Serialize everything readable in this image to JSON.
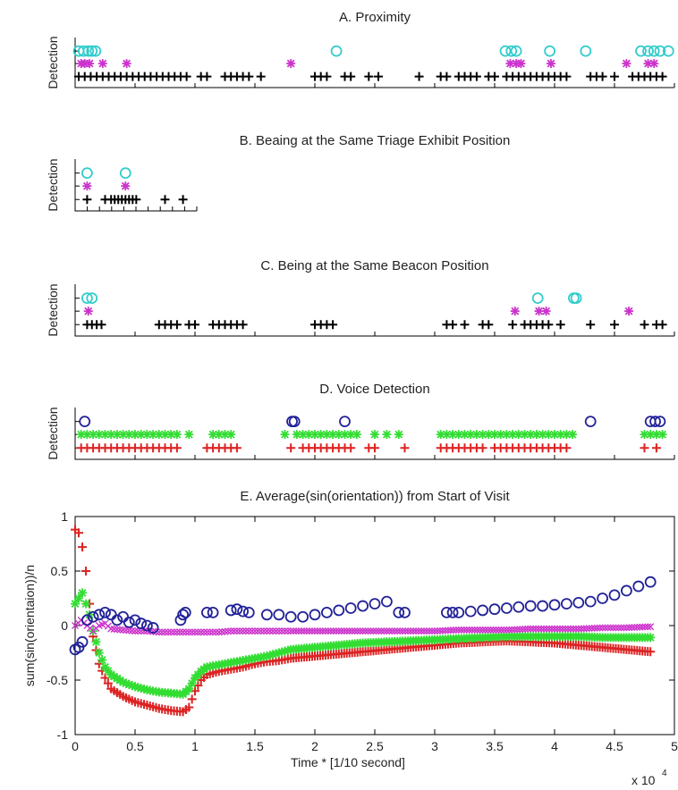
{
  "figure": {
    "x_exponent_base": "x 10",
    "x_exponent_power": "4"
  },
  "chart_data": [
    {
      "id": "A",
      "type": "scatter",
      "title": "A. Proximity",
      "ylabel": "Detection",
      "xlim": [
        0,
        50000
      ],
      "series": [
        {
          "marker": "plus",
          "color": "#000000",
          "level": 1,
          "x": [
            300,
            800,
            1300,
            1800,
            2300,
            2800,
            3300,
            3800,
            4300,
            4800,
            5300,
            5800,
            6300,
            6800,
            7300,
            7800,
            8300,
            8800,
            9300,
            10500,
            11000,
            12500,
            13000,
            13500,
            14000,
            14500,
            15500,
            20000,
            20500,
            21000,
            22500,
            23000,
            24500,
            25300,
            28700,
            30500,
            31000,
            32000,
            32500,
            33000,
            33500,
            34500,
            35000,
            36000,
            36500,
            37000,
            37500,
            38000,
            38500,
            39000,
            39500,
            40000,
            40500,
            41000,
            43000,
            43500,
            44000,
            45000,
            46500,
            47000,
            47500,
            48000,
            48500,
            49000
          ]
        },
        {
          "marker": "star",
          "color": "#cc33cc",
          "level": 2,
          "x": [
            500,
            800,
            1200,
            2300,
            4300,
            18000,
            36300,
            36800,
            37200,
            39700,
            46000,
            47800,
            48300
          ]
        },
        {
          "marker": "circle",
          "color": "#33cccc",
          "level": 3,
          "x": [
            300,
            700,
            1100,
            1400,
            1700,
            21800,
            35900,
            36400,
            36800,
            39600,
            42600,
            47200,
            47800,
            48300,
            48800,
            49500
          ]
        }
      ]
    },
    {
      "id": "B",
      "type": "scatter",
      "title": "B. Beaing at the Same Triage Exhibit Position",
      "ylabel": "Detection",
      "xlim": [
        0,
        50000
      ],
      "series": [
        {
          "marker": "plus",
          "color": "#000000",
          "level": 1,
          "x": [
            1000,
            2500,
            3000,
            3300,
            3600,
            3900,
            4200,
            4500,
            4800,
            5100,
            7500,
            9000
          ]
        },
        {
          "marker": "star",
          "color": "#cc33cc",
          "level": 2,
          "x": [
            1000,
            4200
          ]
        },
        {
          "marker": "circle",
          "color": "#33cccc",
          "level": 3,
          "x": [
            1000,
            4200
          ]
        }
      ]
    },
    {
      "id": "C",
      "type": "scatter",
      "title": "C. Being at the Same Beacon Position",
      "ylabel": "Detection",
      "xlim": [
        0,
        50000
      ],
      "series": [
        {
          "marker": "plus",
          "color": "#000000",
          "level": 1,
          "x": [
            1000,
            1400,
            1800,
            2200,
            7000,
            7500,
            8000,
            8500,
            9500,
            10000,
            11500,
            12000,
            12500,
            13000,
            13500,
            14000,
            20000,
            20500,
            21000,
            21500,
            31000,
            31500,
            32500,
            34000,
            34500,
            36500,
            37500,
            38000,
            38500,
            39000,
            39500,
            40500,
            43000,
            45000,
            47500,
            48500,
            49000
          ]
        },
        {
          "marker": "star",
          "color": "#cc33cc",
          "level": 2,
          "x": [
            1100,
            36700,
            38700,
            39300,
            46200
          ]
        },
        {
          "marker": "circle",
          "color": "#33cccc",
          "level": 3,
          "x": [
            1000,
            1400,
            38600,
            41600,
            41800
          ]
        }
      ]
    },
    {
      "id": "D",
      "type": "scatter",
      "title": "D. Voice Detection",
      "ylabel": "Detection",
      "xlim": [
        0,
        50000
      ],
      "series": [
        {
          "marker": "plus",
          "color": "#dd2222",
          "level": 1,
          "x": [
            500,
            1000,
            1500,
            2000,
            2500,
            3000,
            3500,
            4000,
            4500,
            5000,
            5500,
            6000,
            6500,
            7000,
            7500,
            8000,
            8500,
            11000,
            11500,
            12000,
            12500,
            13000,
            13500,
            18000,
            19000,
            19500,
            20000,
            20500,
            21000,
            21500,
            22000,
            22500,
            23000,
            24500,
            25000,
            27500,
            30500,
            31000,
            31500,
            32000,
            32500,
            33000,
            33500,
            34000,
            35000,
            35500,
            36000,
            36500,
            37000,
            37500,
            38000,
            38500,
            39000,
            39500,
            40000,
            40500,
            41000,
            47500,
            48500
          ]
        },
        {
          "marker": "star",
          "color": "#33dd33",
          "level": 2,
          "x": [
            500,
            1000,
            1500,
            2000,
            2500,
            3000,
            3500,
            4000,
            4500,
            5000,
            5500,
            6000,
            6500,
            7000,
            7500,
            8000,
            8500,
            9500,
            11500,
            12000,
            12500,
            13000,
            17500,
            18500,
            19000,
            19500,
            20000,
            20500,
            21000,
            21500,
            22000,
            22500,
            23000,
            23500,
            25000,
            26000,
            27000,
            30500,
            31000,
            31500,
            32000,
            32500,
            33000,
            33500,
            34000,
            34500,
            35000,
            35500,
            36000,
            36500,
            37000,
            37500,
            38000,
            38500,
            39000,
            39500,
            40000,
            40500,
            41000,
            41500,
            47500,
            48000,
            48500,
            49000
          ]
        },
        {
          "marker": "circle",
          "color": "#222299",
          "level": 3,
          "x": [
            800,
            18100,
            18300,
            22500,
            43000,
            48000,
            48400,
            48800
          ]
        }
      ]
    },
    {
      "id": "E",
      "type": "scatter",
      "title": "E. Average(sin(orientation)) from Start of Visit",
      "ylabel": "sum(sin(orientaion))/n",
      "xlabel": "Time * [1/10 second]",
      "xlim": [
        0,
        50000
      ],
      "ylim": [
        -1,
        1
      ],
      "xticks": [
        "0",
        "0.5",
        "1",
        "1.5",
        "2",
        "2.5",
        "3",
        "3.5",
        "4",
        "4.5",
        "5"
      ],
      "yticks": [
        "-1",
        "-0.5",
        "0",
        "0.5",
        "1"
      ],
      "series": [
        {
          "marker": "plus",
          "color": "#dd2222",
          "x": [
            0,
            300,
            600,
            900,
            1200,
            1500,
            2000,
            2500,
            3000,
            4000,
            5000,
            6000,
            7000,
            8000,
            9000,
            9500,
            10000,
            10500,
            11000,
            12000,
            13000,
            14000,
            15000,
            16000,
            17000,
            18000,
            20000,
            22000,
            24000,
            26000,
            28000,
            30000,
            32000,
            34000,
            36000,
            38000,
            40000,
            42000,
            44000,
            46000,
            48000
          ],
          "y": [
            0.88,
            0.85,
            0.72,
            0.5,
            0.2,
            -0.1,
            -0.35,
            -0.48,
            -0.58,
            -0.65,
            -0.7,
            -0.73,
            -0.76,
            -0.78,
            -0.79,
            -0.75,
            -0.6,
            -0.5,
            -0.45,
            -0.42,
            -0.4,
            -0.38,
            -0.35,
            -0.33,
            -0.32,
            -0.3,
            -0.28,
            -0.26,
            -0.24,
            -0.22,
            -0.2,
            -0.18,
            -0.16,
            -0.15,
            -0.14,
            -0.15,
            -0.16,
            -0.18,
            -0.2,
            -0.22,
            -0.24
          ]
        },
        {
          "marker": "star",
          "color": "#33dd33",
          "x": [
            0,
            300,
            600,
            900,
            1200,
            1500,
            2000,
            2500,
            3000,
            4000,
            5000,
            6000,
            7000,
            8000,
            9000,
            9500,
            10000,
            10500,
            11000,
            12000,
            13000,
            14000,
            15000,
            16000,
            17000,
            18000,
            20000,
            22000,
            24000,
            26000,
            28000,
            30000,
            32000,
            34000,
            36000,
            38000,
            40000,
            42000,
            44000,
            46000,
            48000
          ],
          "y": [
            0.2,
            0.25,
            0.3,
            0.2,
            0.1,
            -0.05,
            -0.25,
            -0.38,
            -0.45,
            -0.52,
            -0.56,
            -0.59,
            -0.61,
            -0.62,
            -0.63,
            -0.58,
            -0.48,
            -0.42,
            -0.38,
            -0.36,
            -0.34,
            -0.32,
            -0.3,
            -0.28,
            -0.25,
            -0.22,
            -0.2,
            -0.18,
            -0.16,
            -0.15,
            -0.14,
            -0.13,
            -0.12,
            -0.11,
            -0.1,
            -0.1,
            -0.1,
            -0.1,
            -0.11,
            -0.11,
            -0.11
          ]
        },
        {
          "marker": "x",
          "color": "#cc33cc",
          "x": [
            0,
            500,
            1000,
            1500,
            2000,
            2500,
            3000,
            4000,
            5000,
            6000,
            7000,
            8000,
            9000,
            10000,
            11000,
            12000,
            13000,
            14000,
            15000,
            16000,
            17000,
            18000,
            20000,
            22000,
            24000,
            26000,
            28000,
            30000,
            32000,
            34000,
            36000,
            38000,
            40000,
            42000,
            44000,
            46000,
            48000
          ],
          "y": [
            0.0,
            0.05,
            0.0,
            -0.05,
            0.0,
            0.02,
            -0.03,
            -0.04,
            -0.05,
            -0.05,
            -0.06,
            -0.06,
            -0.06,
            -0.06,
            -0.06,
            -0.06,
            -0.05,
            -0.05,
            -0.05,
            -0.05,
            -0.05,
            -0.05,
            -0.05,
            -0.05,
            -0.05,
            -0.05,
            -0.05,
            -0.05,
            -0.04,
            -0.04,
            -0.04,
            -0.03,
            -0.03,
            -0.03,
            -0.02,
            -0.02,
            -0.01
          ]
        },
        {
          "marker": "circle",
          "color": "#222299",
          "x": [
            0,
            300,
            600,
            1000,
            1500,
            2000,
            2500,
            3000,
            3500,
            4000,
            4500,
            5000,
            5500,
            6000,
            6500,
            8800,
            9000,
            9200,
            11000,
            11500,
            13000,
            13500,
            14000,
            14500,
            16000,
            17000,
            18000,
            19000,
            20000,
            21000,
            22000,
            23000,
            24000,
            25000,
            26000,
            27000,
            27500,
            31000,
            31500,
            32000,
            33000,
            34000,
            35000,
            36000,
            37000,
            38000,
            39000,
            40000,
            41000,
            42000,
            43000,
            44000,
            45000,
            46000,
            47000,
            48000
          ],
          "y": [
            -0.22,
            -0.2,
            -0.15,
            0.05,
            0.08,
            0.1,
            0.12,
            0.1,
            0.05,
            0.08,
            0.03,
            0.05,
            0.02,
            0.0,
            -0.02,
            0.05,
            0.1,
            0.12,
            0.12,
            0.12,
            0.14,
            0.15,
            0.13,
            0.12,
            0.1,
            0.1,
            0.08,
            0.08,
            0.1,
            0.12,
            0.14,
            0.16,
            0.18,
            0.2,
            0.22,
            0.12,
            0.12,
            0.12,
            0.12,
            0.12,
            0.13,
            0.14,
            0.15,
            0.16,
            0.17,
            0.18,
            0.18,
            0.19,
            0.2,
            0.21,
            0.22,
            0.25,
            0.28,
            0.32,
            0.36,
            0.4
          ]
        }
      ]
    }
  ]
}
